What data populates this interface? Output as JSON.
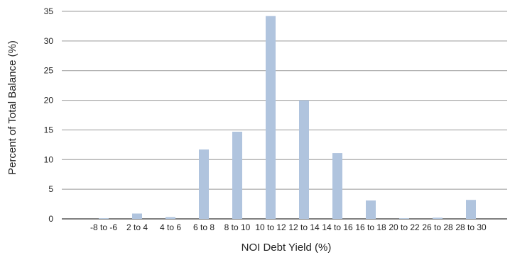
{
  "chart_data": {
    "type": "bar",
    "categories": [
      "-8 to -6",
      "2 to 4",
      "4 to 6",
      "6 to 8",
      "8 to 10",
      "10 to 12",
      "12 to 14",
      "14 to 16",
      "16 to 18",
      "20 to 22",
      "26 to 28",
      "28 to 30"
    ],
    "tick_labels": [
      "-8 to -6",
      "2 to 4",
      "4 to 6",
      "6 to 8",
      "8 to 10",
      "10 to 12",
      "12 to 14",
      "14 to 16",
      "16 to 18",
      "20 to 22",
      "26 to 28",
      "28 to 30"
    ],
    "values": [
      0.1,
      0.9,
      0.3,
      11.7,
      14.7,
      34.2,
      20.0,
      11.1,
      3.1,
      0.1,
      0.2,
      3.2
    ],
    "xlabel": "NOI Debt Yield (%)",
    "ylabel": "Percent of Total Balance (%)",
    "ylim": [
      0,
      35
    ],
    "yticks": [
      0,
      5,
      10,
      15,
      20,
      25,
      30,
      35
    ],
    "grid": true,
    "bar_color": "#b0c4de",
    "grid_color": "#999999"
  }
}
